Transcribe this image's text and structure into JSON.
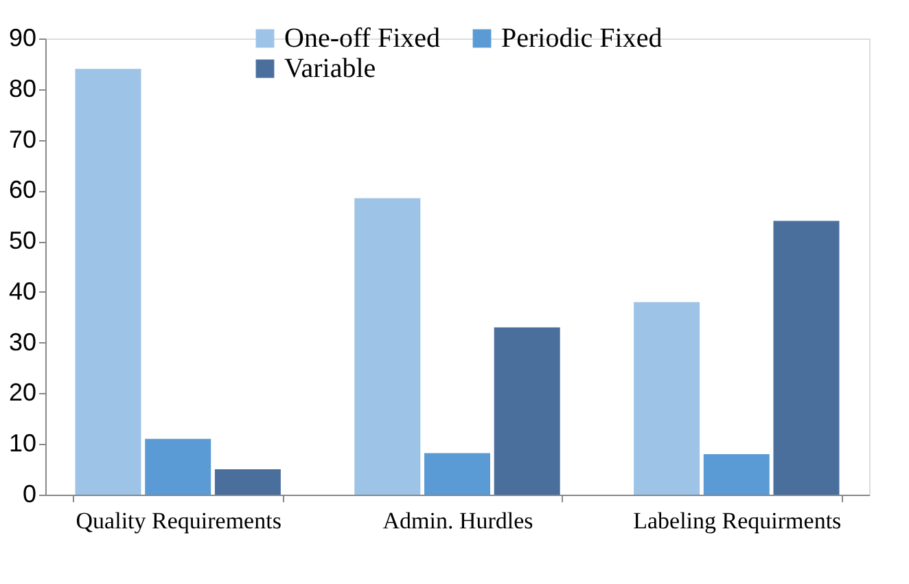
{
  "chart_data": {
    "type": "bar",
    "categories": [
      "Quality Requirements",
      "Admin. Hurdles",
      "Labeling Requirments"
    ],
    "series": [
      {
        "name": "One-off Fixed",
        "color": "#9dc3e6",
        "values": [
          84,
          58.5,
          38
        ]
      },
      {
        "name": "Periodic Fixed",
        "color": "#5b9bd5",
        "values": [
          11,
          8.2,
          8
        ]
      },
      {
        "name": "Variable",
        "color": "#4a6f9c",
        "values": [
          5,
          33,
          54
        ]
      }
    ],
    "ylim": [
      0,
      90
    ],
    "yticks": [
      0,
      10,
      20,
      30,
      40,
      50,
      60,
      70,
      80,
      90
    ],
    "grid": false,
    "legend": "top"
  }
}
